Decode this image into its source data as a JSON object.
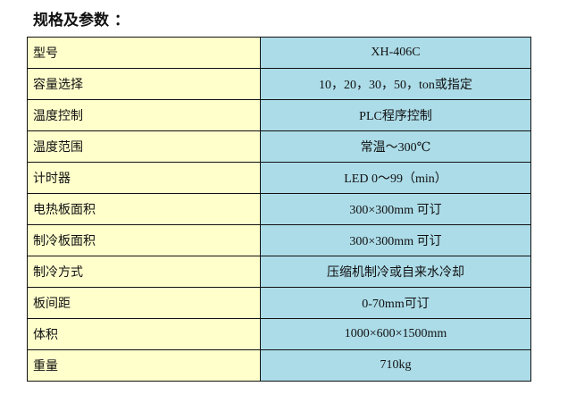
{
  "title": "规格及参数 ：",
  "colors": {
    "label_bg": "#ffffcc",
    "value_bg": "#acdce8"
  },
  "rows": [
    {
      "label": "型号",
      "value": "XH-406C"
    },
    {
      "label": "容量选择",
      "value": "10，20，30，50，ton或指定"
    },
    {
      "label": "温度控制",
      "value": "PLC程序控制"
    },
    {
      "label": "温度范围",
      "value": "常温～300℃"
    },
    {
      "label": "计时器",
      "value": "LED 0～99（min）"
    },
    {
      "label": "电热板面积",
      "value": "300×300mm 可订"
    },
    {
      "label": "制冷板面积",
      "value": "300×300mm 可订"
    },
    {
      "label": "制冷方式",
      "value": "压缩机制冷或自来水冷却"
    },
    {
      "label": "板间距",
      "value": "0-70mm可订"
    },
    {
      "label": "体积",
      "value": "1000×600×1500mm"
    },
    {
      "label": "重量",
      "value": "710kg"
    }
  ]
}
